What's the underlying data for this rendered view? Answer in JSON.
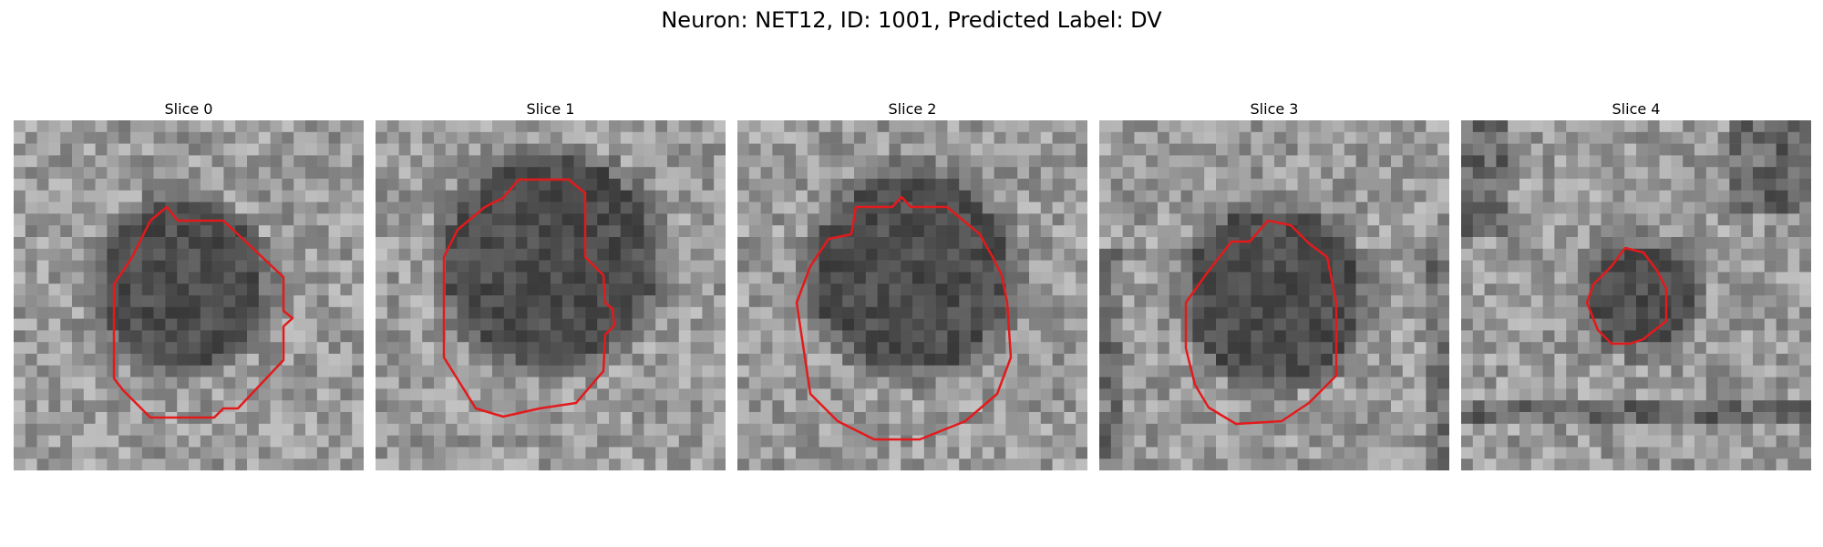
{
  "title": "Neuron: NET12, ID: 1001, Predicted Label: DV",
  "colors": {
    "contour": "#e31a1c"
  },
  "slices": [
    {
      "label": "Slice 0"
    },
    {
      "label": "Slice 1"
    },
    {
      "label": "Slice 2"
    },
    {
      "label": "Slice 3"
    },
    {
      "label": "Slice 4"
    }
  ]
}
